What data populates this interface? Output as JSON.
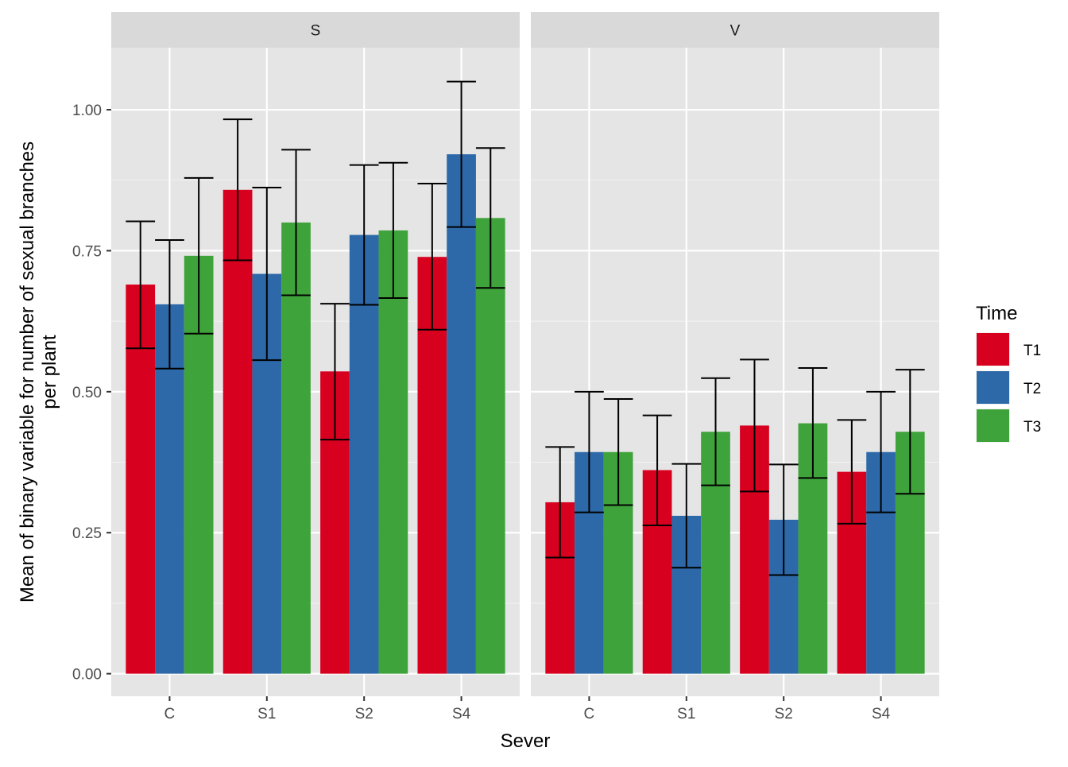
{
  "chart_data": {
    "type": "bar",
    "facets": [
      "S",
      "V"
    ],
    "categories": [
      "C",
      "S1",
      "S2",
      "S4"
    ],
    "xlabel": "Sever",
    "ylabel": [
      "Mean of binary variable for number of sexual branches",
      "per plant"
    ],
    "ylim": [
      -0.04,
      1.11
    ],
    "yticks": [
      0.0,
      0.25,
      0.5,
      0.75,
      1.0
    ],
    "ytick_labels": [
      "0.00",
      "0.25",
      "0.50",
      "0.75",
      "1.00"
    ],
    "legend": {
      "title": "Time",
      "position": "right"
    },
    "series": [
      {
        "name": "T1",
        "color": "#d7001e",
        "values": {
          "S": [
            0.69,
            0.858,
            0.536,
            0.739
          ],
          "V": [
            0.304,
            0.361,
            0.44,
            0.358
          ]
        },
        "err_low": {
          "S": [
            0.577,
            0.733,
            0.415,
            0.61
          ],
          "V": [
            0.206,
            0.263,
            0.323,
            0.266
          ]
        },
        "err_high": {
          "S": [
            0.802,
            0.983,
            0.656,
            0.869
          ],
          "V": [
            0.402,
            0.458,
            0.557,
            0.45
          ]
        }
      },
      {
        "name": "T2",
        "color": "#2d69a9",
        "values": {
          "S": [
            0.655,
            0.709,
            0.778,
            0.921
          ],
          "V": [
            0.393,
            0.28,
            0.273,
            0.393
          ]
        },
        "err_low": {
          "S": [
            0.541,
            0.556,
            0.654,
            0.792
          ],
          "V": [
            0.286,
            0.188,
            0.175,
            0.286
          ]
        },
        "err_high": {
          "S": [
            0.769,
            0.862,
            0.902,
            1.05
          ],
          "V": [
            0.5,
            0.372,
            0.371,
            0.5
          ]
        }
      },
      {
        "name": "T3",
        "color": "#3fa33b",
        "values": {
          "S": [
            0.741,
            0.8,
            0.786,
            0.808
          ],
          "V": [
            0.393,
            0.429,
            0.444,
            0.429
          ]
        },
        "err_low": {
          "S": [
            0.603,
            0.671,
            0.666,
            0.684
          ],
          "V": [
            0.299,
            0.334,
            0.347,
            0.319
          ]
        },
        "err_high": {
          "S": [
            0.879,
            0.929,
            0.906,
            0.932
          ],
          "V": [
            0.487,
            0.524,
            0.542,
            0.539
          ]
        }
      }
    ]
  }
}
